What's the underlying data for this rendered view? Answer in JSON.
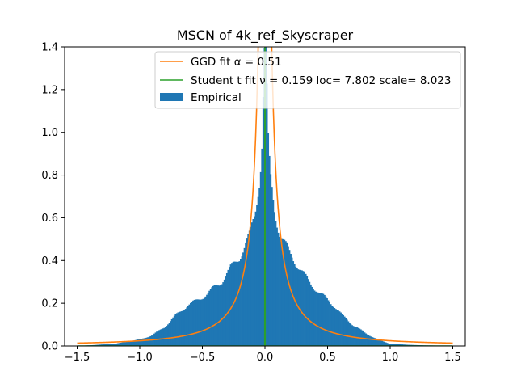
{
  "chart_data": {
    "type": "histogram",
    "title": "MSCN of 4k_ref_Skyscraper",
    "xlabel": "",
    "ylabel": "",
    "xlim": [
      -1.6,
      1.6
    ],
    "ylim": [
      0,
      1.4
    ],
    "x_ticks": [
      -1.5,
      -1.0,
      -0.5,
      0.0,
      0.5,
      1.0,
      1.5
    ],
    "x_tick_labels": [
      "−1.5",
      "−1.0",
      "−0.5",
      "0.0",
      "0.5",
      "1.0",
      "1.5"
    ],
    "y_ticks": [
      0.0,
      0.2,
      0.4,
      0.6,
      0.8,
      1.0,
      1.2,
      1.4
    ],
    "y_tick_labels": [
      "0.0",
      "0.2",
      "0.4",
      "0.6",
      "0.8",
      "1.0",
      "1.2",
      "1.4"
    ],
    "grid": false,
    "legend_position": "top-right",
    "legend": [
      {
        "label": "GGD fit α = 0.51",
        "kind": "line",
        "color": "#ff7f0e"
      },
      {
        "label": "Student t fit ν = 0.159 loc= 7.802 scale= 8.023",
        "kind": "line",
        "color": "#2ca02c"
      },
      {
        "label": "Empirical",
        "kind": "patch",
        "color": "#1f77b4"
      }
    ],
    "series": [
      {
        "name": "Empirical",
        "type": "histogram",
        "color": "#1f77b4",
        "x_range": [
          -1.5,
          1.5
        ],
        "bins": 300,
        "profile_x": [
          -1.5,
          -1.2,
          -1.0,
          -0.9,
          -0.8,
          -0.7,
          -0.62,
          -0.55,
          -0.45,
          -0.35,
          -0.28,
          -0.2,
          -0.12,
          -0.08,
          -0.04,
          -0.02,
          -0.01,
          0.0,
          0.01,
          0.02,
          0.04,
          0.08,
          0.12,
          0.2,
          0.28,
          0.35,
          0.45,
          0.55,
          0.62,
          0.7,
          0.8,
          0.9,
          1.0,
          1.2,
          1.5
        ],
        "profile_y": [
          0.0,
          0.01,
          0.03,
          0.05,
          0.09,
          0.15,
          0.19,
          0.21,
          0.25,
          0.3,
          0.36,
          0.42,
          0.52,
          0.62,
          0.8,
          1.0,
          1.35,
          1.4,
          1.35,
          1.0,
          0.8,
          0.62,
          0.52,
          0.43,
          0.36,
          0.3,
          0.24,
          0.19,
          0.14,
          0.1,
          0.06,
          0.03,
          0.01,
          0.004,
          0.0
        ]
      },
      {
        "name": "GGD fit α = 0.51",
        "type": "line",
        "color": "#ff7f0e",
        "alpha": 0.51,
        "sample_x": [
          -1.5,
          -1.0,
          -0.5,
          -0.3,
          -0.2,
          -0.1,
          0.0,
          0.1,
          0.2,
          0.3,
          0.5,
          1.0,
          1.5
        ],
        "sample_y": [
          0.01,
          0.03,
          0.13,
          0.35,
          0.63,
          1.25,
          4.0,
          1.25,
          0.63,
          0.35,
          0.13,
          0.03,
          0.01
        ]
      },
      {
        "name": "Student t fit ν = 0.159 loc= 7.802 scale= 8.023",
        "type": "line",
        "color": "#2ca02c",
        "nu": 0.159,
        "loc": 7.802,
        "scale": 8.023,
        "sample_x": [
          -1.5,
          -0.01,
          -0.002,
          0.0,
          0.002,
          0.01,
          1.5
        ],
        "sample_y": [
          0.0,
          0.0,
          0.0,
          2.0,
          0.0,
          0.0,
          0.0
        ]
      }
    ]
  }
}
